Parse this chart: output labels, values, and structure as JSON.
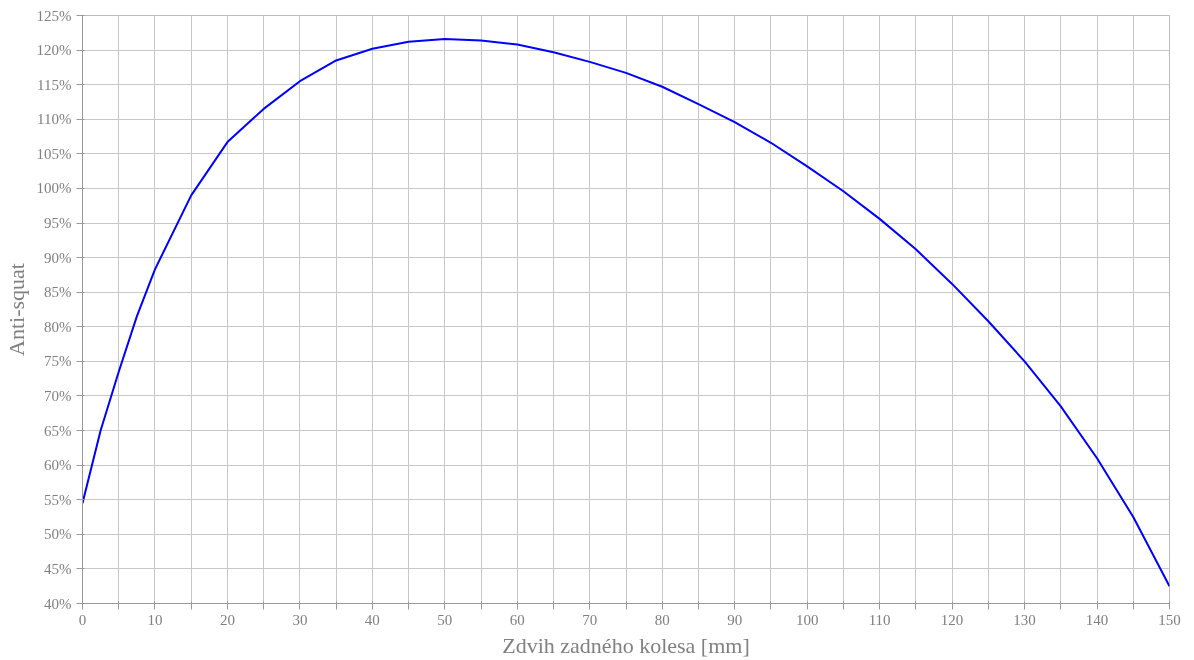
{
  "chart_data": {
    "type": "line",
    "xlabel": "Zdvih zadného kolesa [mm]",
    "ylabel": "Anti-squat",
    "xlim": [
      0,
      150
    ],
    "ylim": [
      40,
      125
    ],
    "xticks": [
      0,
      {
        "value": 5,
        "label": null
      },
      10,
      {
        "value": 15,
        "label": null
      },
      20,
      {
        "value": 25,
        "label": null
      },
      30,
      {
        "value": 35,
        "label": null
      },
      40,
      {
        "value": 45,
        "label": null
      },
      50,
      {
        "value": 55,
        "label": null
      },
      60,
      {
        "value": 65,
        "label": null
      },
      70,
      {
        "value": 75,
        "label": null
      },
      80,
      {
        "value": 85,
        "label": null
      },
      90,
      {
        "value": 95,
        "label": null
      },
      100,
      {
        "value": 105,
        "label": null
      },
      110,
      {
        "value": 115,
        "label": null
      },
      120,
      {
        "value": 125,
        "label": null
      },
      130,
      {
        "value": 135,
        "label": null
      },
      140,
      {
        "value": 145,
        "label": null
      },
      150
    ],
    "yticks": [
      {
        "value": 40,
        "label": "40%"
      },
      {
        "value": 45,
        "label": "45%"
      },
      {
        "value": 50,
        "label": "50%"
      },
      {
        "value": 55,
        "label": "55%"
      },
      {
        "value": 60,
        "label": "60%"
      },
      {
        "value": 65,
        "label": "65%"
      },
      {
        "value": 70,
        "label": "70%"
      },
      {
        "value": 75,
        "label": "75%"
      },
      {
        "value": 80,
        "label": "80%"
      },
      {
        "value": 85,
        "label": "85%"
      },
      {
        "value": 90,
        "label": "90%"
      },
      {
        "value": 95,
        "label": "95%"
      },
      {
        "value": 100,
        "label": "100%"
      },
      {
        "value": 105,
        "label": "105%"
      },
      {
        "value": 110,
        "label": "110%"
      },
      {
        "value": 115,
        "label": "115%"
      },
      {
        "value": 120,
        "label": "120%"
      },
      {
        "value": 125,
        "label": "125%"
      }
    ],
    "grid": true,
    "marker": "none",
    "line_style": "solid",
    "x": [
      0,
      2.5,
      5,
      7.5,
      10,
      15,
      20,
      25,
      30,
      35,
      40,
      45,
      50,
      55,
      60,
      65,
      70,
      75,
      80,
      85,
      90,
      95,
      100,
      105,
      110,
      115,
      120,
      125,
      130,
      135,
      140,
      145,
      150
    ],
    "series": [
      {
        "color": "#0000ff",
        "values": [
          54.5,
          65,
          73.5,
          81.5,
          88.3,
          99,
          106.7,
          111.5,
          115.5,
          118.5,
          120.2,
          121.2,
          121.6,
          121.4,
          120.8,
          119.7,
          118.3,
          116.7,
          114.7,
          112.2,
          109.6,
          106.6,
          103.2,
          99.6,
          95.6,
          91.2,
          86.2,
          80.8,
          75,
          68.5,
          61,
          52.5,
          42.5
        ]
      }
    ]
  }
}
